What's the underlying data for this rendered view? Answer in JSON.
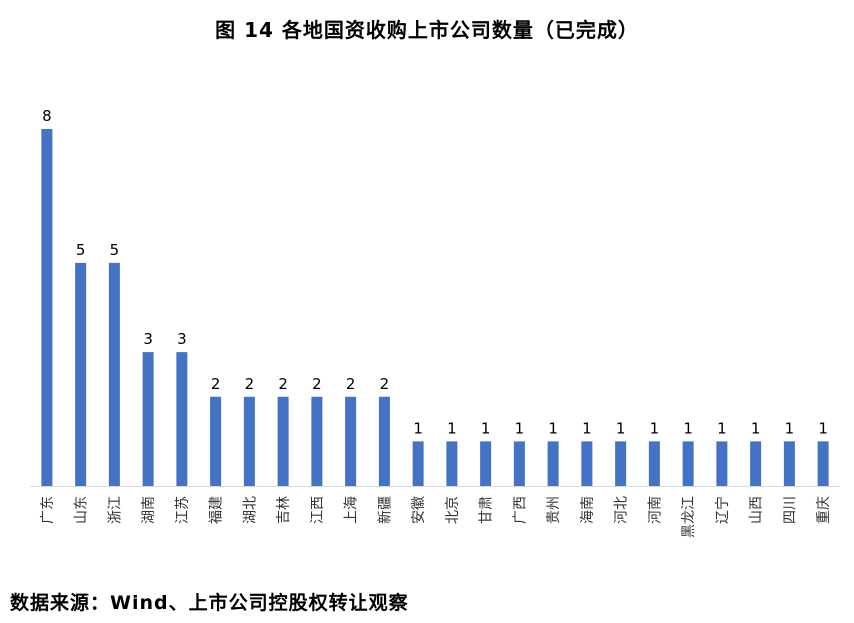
{
  "chart_data": {
    "type": "bar",
    "title": "图 14 各地国资收购上市公司数量（已完成）",
    "categories": [
      "广东",
      "山东",
      "浙江",
      "湖南",
      "江苏",
      "福建",
      "湖北",
      "吉林",
      "江西",
      "上海",
      "新疆",
      "安徽",
      "北京",
      "甘肃",
      "广西",
      "贵州",
      "海南",
      "河北",
      "河南",
      "黑龙江",
      "辽宁",
      "山西",
      "四川",
      "重庆"
    ],
    "values": [
      8,
      5,
      5,
      3,
      3,
      2,
      2,
      2,
      2,
      2,
      2,
      1,
      1,
      1,
      1,
      1,
      1,
      1,
      1,
      1,
      1,
      1,
      1,
      1
    ],
    "xlabel": "",
    "ylabel": "",
    "ylim": [
      0,
      8
    ],
    "grid": false,
    "legend": "none",
    "bar_color": "#4472C4",
    "data_labels": true
  },
  "source": "数据来源：Wind、上市公司控股权转让观察"
}
